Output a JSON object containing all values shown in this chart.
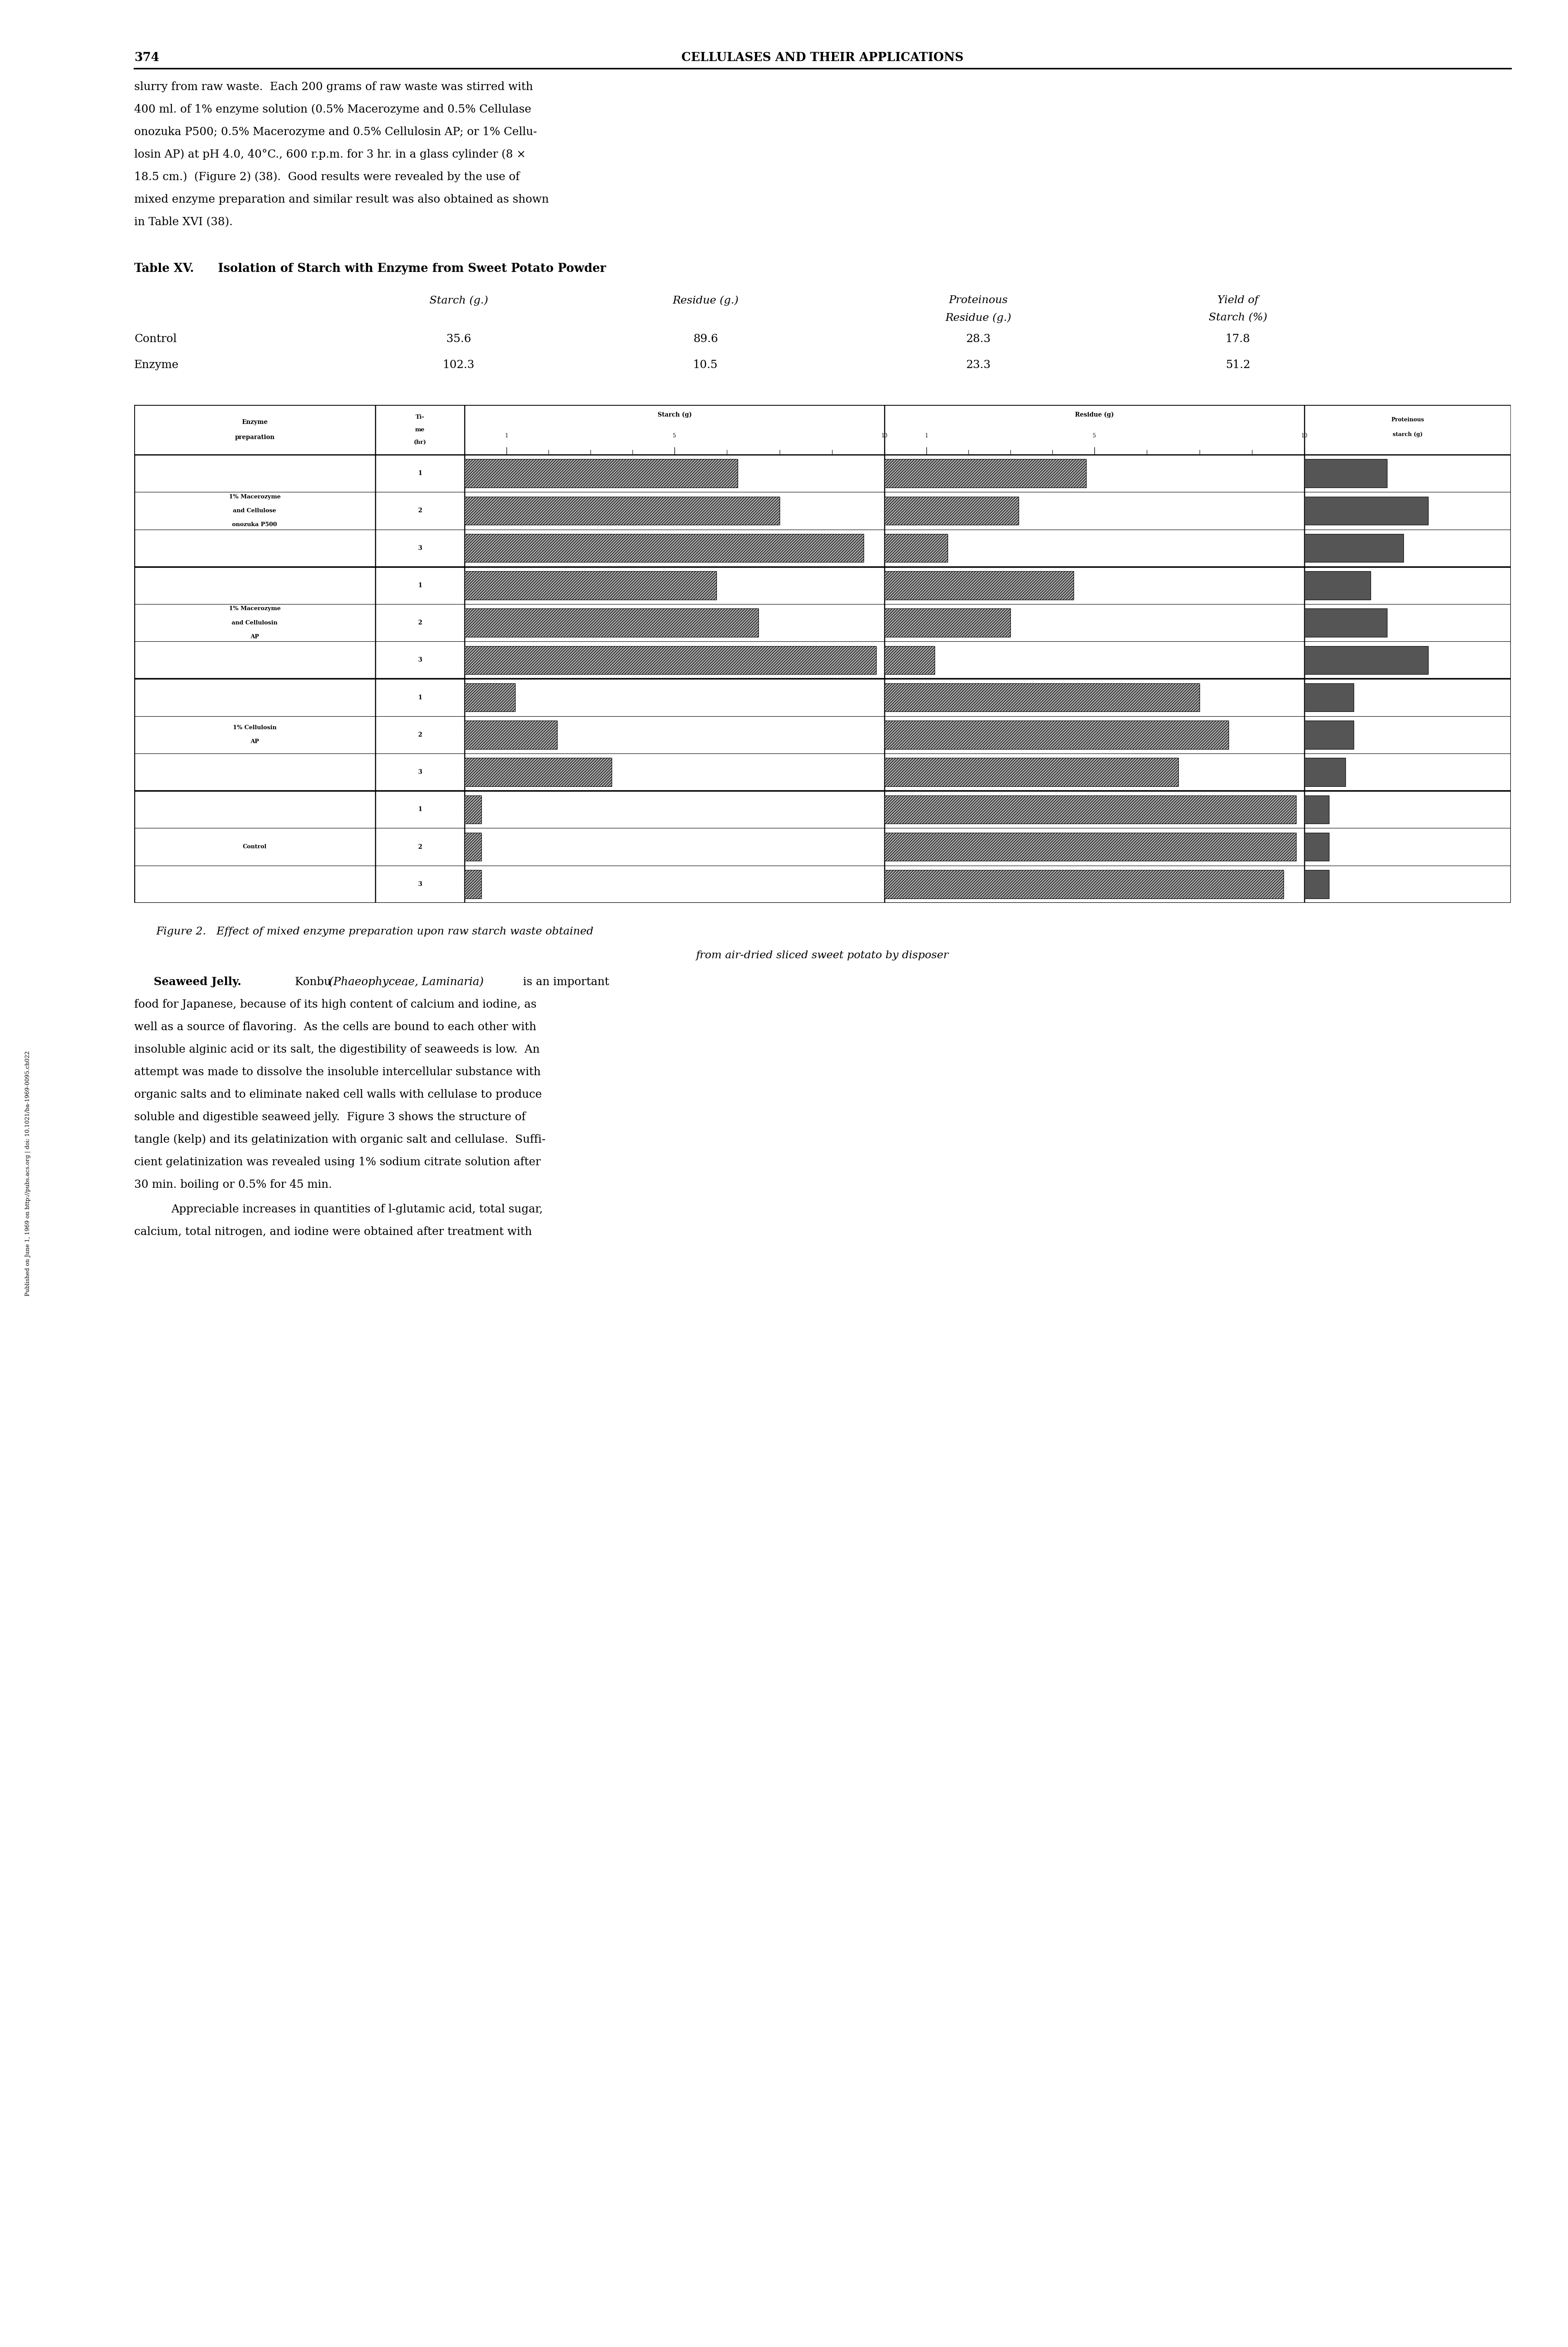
{
  "page_number": "374",
  "header_text": "CELLULASES AND THEIR APPLICATIONS",
  "body_text_top": [
    "slurry from raw waste.  Each 200 grams of raw waste was stirred with",
    "400 ml. of 1% enzyme solution (0.5% Macerozyme and 0.5% Cellulase",
    "onozuka P500; 0.5% Macerozyme and 0.5% Cellulosin AP; or 1% Cellu-",
    "losin AP) at pH 4.0, 40°C., 600 r.p.m. for 3 hr. in a glass cylinder (8 ×",
    "18.5 cm.)  (Figure 2) (38).  Good results were revealed by the use of",
    "mixed enzyme preparation and similar result was also obtained as shown",
    "in Table XVI (38)."
  ],
  "table_title_bold": "Table XV.",
  "table_title_rest": "   Isolation of Starch with Enzyme from Sweet Potato Powder",
  "table_col1_header": "Starch (g.)",
  "table_col2_header": "Residue (g.)",
  "table_col3_header_line1": "Proteinous",
  "table_col3_header_line2": "Residue (g.)",
  "table_col4_header_line1": "Yield of",
  "table_col4_header_line2": "Starch (%)",
  "table_rows": [
    [
      "Control",
      "35.6",
      "89.6",
      "28.3",
      "17.8"
    ],
    [
      "Enzyme",
      "102.3",
      "10.5",
      "23.3",
      "51.2"
    ]
  ],
  "chart_groups": [
    {
      "label": [
        "1% Macerozyme",
        "and Cellulose",
        "onozuka P500"
      ],
      "rows": [
        {
          "time": 1,
          "starch": 6.5,
          "residue": 4.8,
          "prot": 1.0
        },
        {
          "time": 2,
          "starch": 7.5,
          "residue": 3.2,
          "prot": 1.5
        },
        {
          "time": 3,
          "starch": 9.5,
          "residue": 1.5,
          "prot": 1.2
        }
      ]
    },
    {
      "label": [
        "1% Macerozyme",
        "and Cellulosin",
        "AP"
      ],
      "rows": [
        {
          "time": 1,
          "starch": 6.0,
          "residue": 4.5,
          "prot": 0.8
        },
        {
          "time": 2,
          "starch": 7.0,
          "residue": 3.0,
          "prot": 1.0
        },
        {
          "time": 3,
          "starch": 9.8,
          "residue": 1.2,
          "prot": 1.5
        }
      ]
    },
    {
      "label": [
        "1% Cellulosin",
        "AP"
      ],
      "rows": [
        {
          "time": 1,
          "starch": 1.2,
          "residue": 7.5,
          "prot": 0.6
        },
        {
          "time": 2,
          "starch": 2.2,
          "residue": 8.2,
          "prot": 0.6
        },
        {
          "time": 3,
          "starch": 3.5,
          "residue": 7.0,
          "prot": 0.5
        }
      ]
    },
    {
      "label": [
        "Control"
      ],
      "rows": [
        {
          "time": 1,
          "starch": 0.4,
          "residue": 9.8,
          "prot": 0.3
        },
        {
          "time": 2,
          "starch": 0.4,
          "residue": 9.8,
          "prot": 0.3
        },
        {
          "time": 3,
          "starch": 0.4,
          "residue": 9.5,
          "prot": 0.3
        }
      ]
    }
  ],
  "starch_max": 10.0,
  "residue_max": 10.0,
  "prot_max": 2.5,
  "axis_ticks": [
    1,
    5,
    10
  ],
  "figure_caption_line1": "Figure 2.   Effect of mixed enzyme preparation upon raw starch waste obtained",
  "figure_caption_line2": "from air-dried sliced sweet potato by disposer",
  "body_bottom_para1": [
    "     Seaweed Jelly.  Konbu (Phaeophyceae, Laminaria) is an important",
    "food for Japanese, because of its high content of calcium and iodine, as",
    "well as a source of flavoring.  As the cells are bound to each other with",
    "insoluble alginic acid or its salt, the digestibility of seaweeds is low.  An",
    "attempt was made to dissolve the insoluble intercellular substance with",
    "organic salts and to eliminate naked cell walls with cellulase to produce",
    "soluble and digestible seaweed jelly.  Figure 3 shows the structure of",
    "tangle (kelp) and its gelatinization with organic salt and cellulase.  Suffi-",
    "cient gelatinization was revealed using 1% sodium citrate solution after",
    "30 min. boiling or 0.5% for 45 min."
  ],
  "body_bottom_para2": [
    "     Appreciable increases in quantities of l-glutamic acid, total sugar,",
    "calcium, total nitrogen, and iodine were obtained after treatment with"
  ],
  "sidebar_text": "Published on June 1, 1969 on http://pubs.acs.org | doi: 10.1021/ba-1969-0095.ch022",
  "bg_color": "#ffffff",
  "bar_color": "#aaaaaa",
  "bar_dark_color": "#555555"
}
